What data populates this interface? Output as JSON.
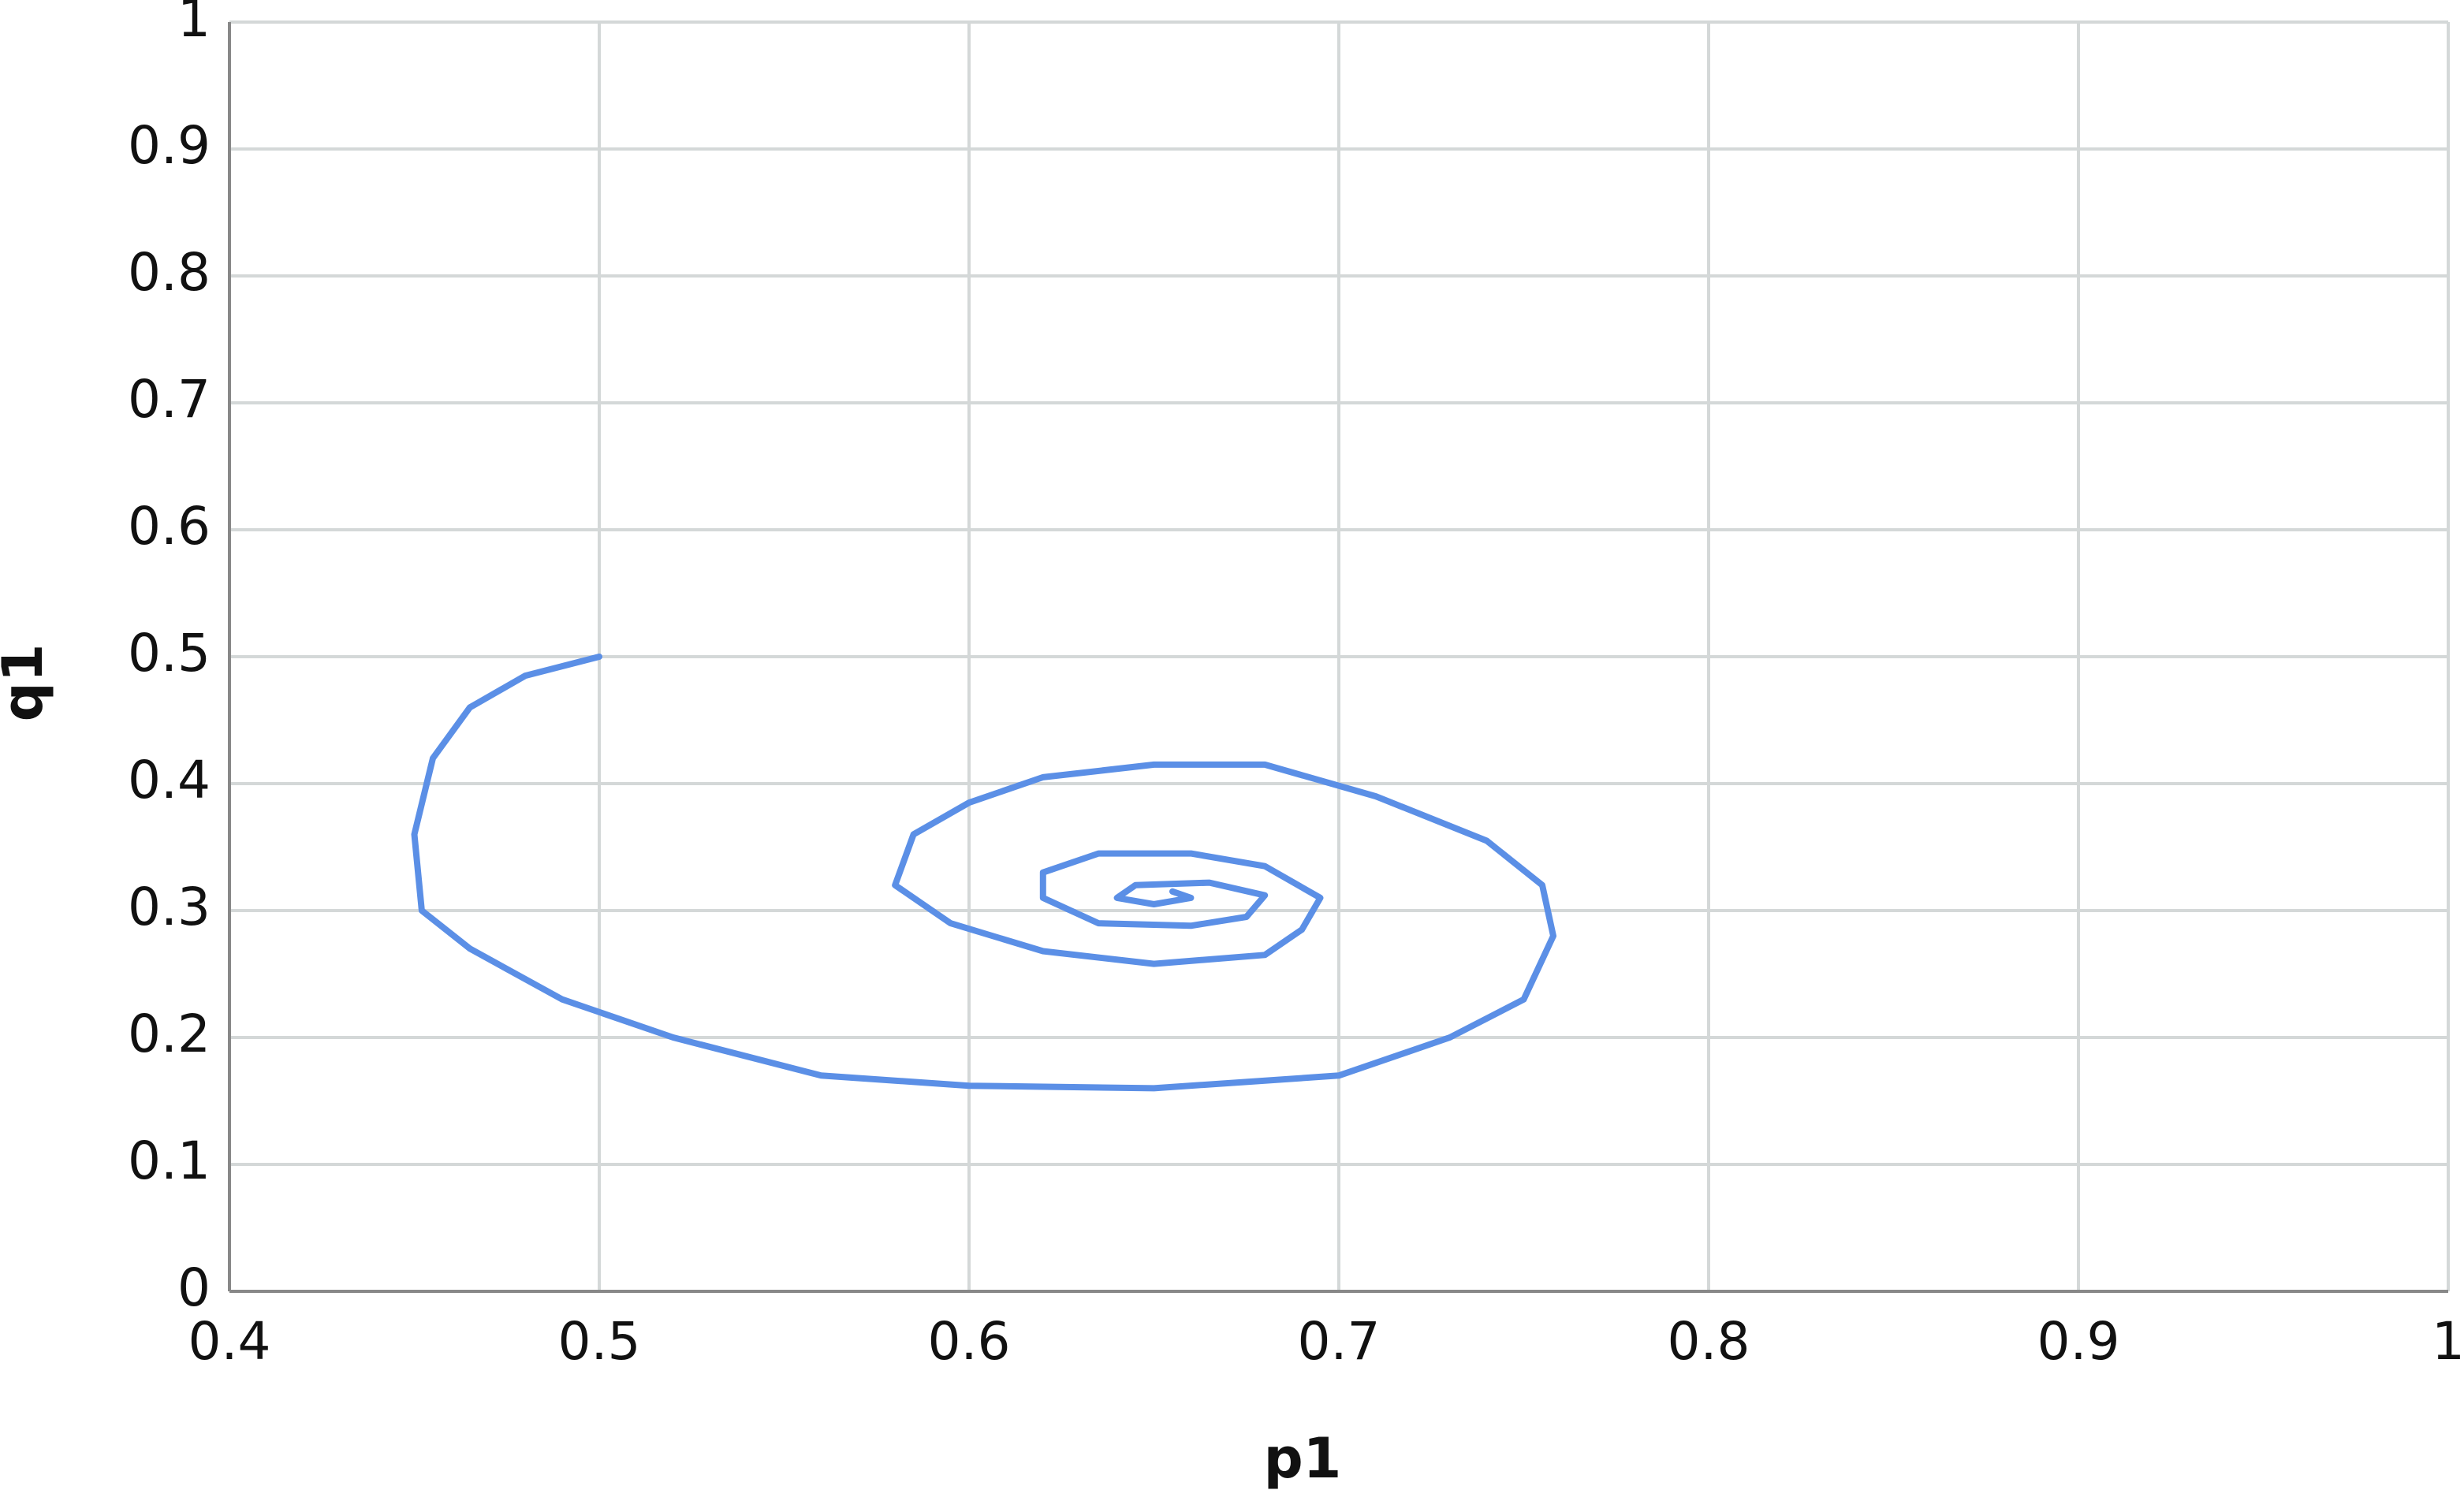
{
  "chart_data": {
    "type": "line",
    "x_label": "p1",
    "y_label": "q1",
    "x": [
      0.5,
      0.48,
      0.465,
      0.455,
      0.45,
      0.452,
      0.465,
      0.49,
      0.52,
      0.56,
      0.6,
      0.65,
      0.7,
      0.73,
      0.75,
      0.758,
      0.755,
      0.74,
      0.71,
      0.68,
      0.65,
      0.62,
      0.6,
      0.585,
      0.58,
      0.595,
      0.62,
      0.65,
      0.68,
      0.69,
      0.695,
      0.68,
      0.66,
      0.635,
      0.62,
      0.62,
      0.635,
      0.66,
      0.675,
      0.68,
      0.665,
      0.645,
      0.64,
      0.65,
      0.66,
      0.655
    ],
    "values": [
      0.5,
      0.485,
      0.46,
      0.42,
      0.36,
      0.3,
      0.27,
      0.23,
      0.2,
      0.17,
      0.162,
      0.16,
      0.17,
      0.2,
      0.23,
      0.28,
      0.32,
      0.355,
      0.39,
      0.415,
      0.415,
      0.405,
      0.385,
      0.36,
      0.32,
      0.29,
      0.268,
      0.258,
      0.265,
      0.285,
      0.31,
      0.335,
      0.345,
      0.345,
      0.33,
      0.31,
      0.29,
      0.288,
      0.295,
      0.312,
      0.322,
      0.32,
      0.31,
      0.305,
      0.31,
      0.315
    ],
    "color": "#5b8fe6",
    "xlim": [
      0.4,
      1
    ],
    "xticks": [
      0.4,
      0.5,
      0.6,
      0.7,
      0.8,
      0.9,
      1
    ],
    "ylim": [
      0,
      1
    ],
    "yticks": [
      0,
      0.1,
      0.2,
      0.3,
      0.4,
      0.5,
      0.6,
      0.7,
      0.8,
      0.9,
      1
    ],
    "grid": true
  }
}
